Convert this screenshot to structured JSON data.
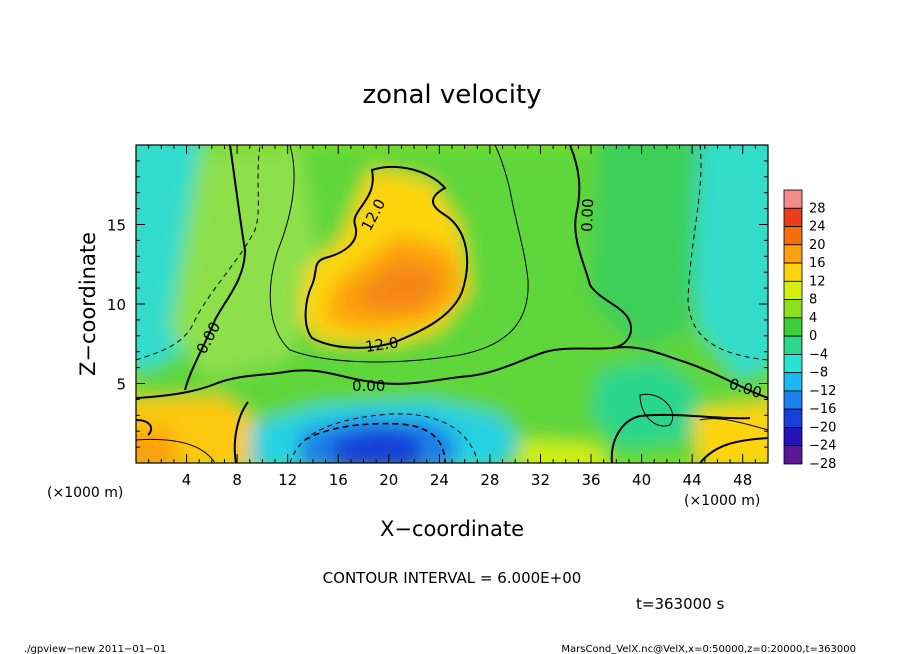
{
  "chart_data": {
    "type": "heatmap",
    "title": "zonal velocity",
    "xlabel": "X−coordinate",
    "ylabel": "Z−coordinate",
    "x_unit": "(×1000 m)",
    "y_unit": "(×1000 m)",
    "xlim": [
      0,
      50
    ],
    "ylim": [
      0,
      20
    ],
    "x_ticks": [
      4,
      8,
      12,
      16,
      20,
      24,
      28,
      32,
      36,
      40,
      44,
      48
    ],
    "y_ticks": [
      5,
      10,
      15
    ],
    "colorbar": {
      "levels": [
        28,
        24,
        20,
        16,
        12,
        8,
        4,
        0,
        -4,
        -8,
        -12,
        -16,
        -20,
        -24,
        -28
      ],
      "labels": [
        "28",
        "24",
        "20",
        "16",
        "12",
        "8",
        "4",
        "0",
        "−4",
        "−8",
        "−12",
        "−16",
        "−20",
        "−24",
        "−28"
      ],
      "colors": [
        "#f48a8a",
        "#ec3c1c",
        "#f46e10",
        "#fca010",
        "#fcd410",
        "#d4f010",
        "#8ee01c",
        "#3ccf3a",
        "#2cd68c",
        "#28e2d2",
        "#1cb8f2",
        "#1c80ea",
        "#1840d8",
        "#2414b8",
        "#581898"
      ]
    },
    "features": [
      {
        "name": "jet core",
        "x": 21,
        "z": 11,
        "value": 18
      },
      {
        "name": "low-level minimum",
        "x": 19,
        "z": 1.5,
        "value": -18
      }
    ],
    "contour_labels": [
      "12.0",
      "12.0",
      "0.00",
      "0.00",
      "0.00",
      "0.00"
    ],
    "contour_interval_text": "CONTOUR INTERVAL = 6.000E+00",
    "time_text": "t=363000  s",
    "footer_left": "./gpview−new   2011−01−01",
    "footer_right": "MarsCond_VelX.nc@VelX,x=0:50000,z=0:20000,t=363000"
  }
}
